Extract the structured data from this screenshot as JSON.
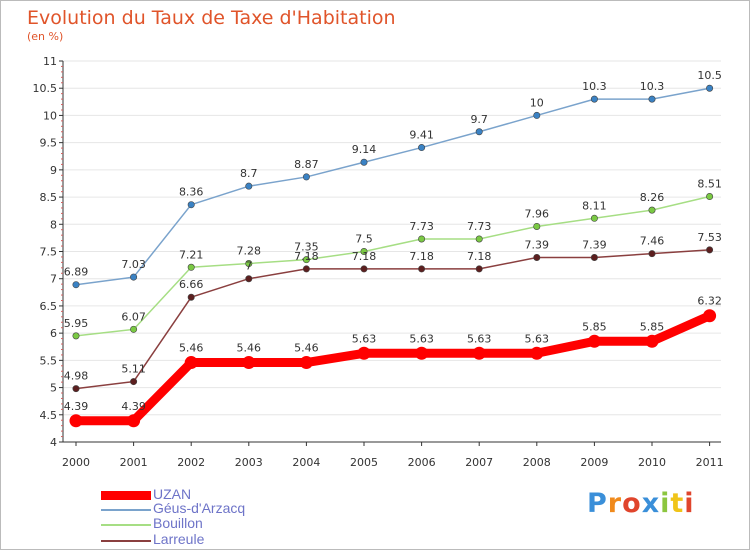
{
  "header": {
    "title": "Evolution du Taux de Taxe d'Habitation",
    "subtitle": "(en %)"
  },
  "logo": {
    "text": "Proxiti",
    "colors": [
      "#3a8fd9",
      "#f08a1c",
      "#e0452c",
      "#3a8fd9",
      "#8cc63f",
      "#f0c419",
      "#e0452c"
    ]
  },
  "chart_data": {
    "type": "line",
    "title": "Evolution du Taux de Taxe d'Habitation",
    "subtitle": "(en %)",
    "xlabel": "",
    "ylabel": "",
    "x": [
      "2000",
      "2001",
      "2002",
      "2003",
      "2004",
      "2005",
      "2006",
      "2007",
      "2008",
      "2009",
      "2010",
      "2011"
    ],
    "ylim": [
      4,
      11
    ],
    "yticks": [
      "4",
      "4.5",
      "5",
      "5.5",
      "6",
      "6.5",
      "7",
      "7.5",
      "8",
      "8.5",
      "9",
      "9.5",
      "10",
      "10.5",
      "11"
    ],
    "legend_position": "bottom-left",
    "series": [
      {
        "name": "UZAN",
        "color": "#ff0000",
        "marker": "#ff0000",
        "values": [
          4.39,
          4.39,
          5.46,
          5.46,
          5.46,
          5.63,
          5.63,
          5.63,
          5.63,
          5.85,
          5.85,
          6.32
        ],
        "labels": [
          "4.39",
          "4.39",
          "5.46",
          "5.46",
          "5.46",
          "5.63",
          "5.63",
          "5.63",
          "5.63",
          "5.85",
          "5.85",
          "6.32"
        ]
      },
      {
        "name": "Géus-d'Arzacq",
        "color": "#7aa3cc",
        "marker": "#3a82c4",
        "values": [
          6.89,
          7.03,
          8.36,
          8.7,
          8.87,
          9.14,
          9.41,
          9.7,
          10,
          10.3,
          10.3,
          10.5
        ],
        "labels": [
          "6.89",
          "7.03",
          "8.36",
          "8.7",
          "8.87",
          "9.14",
          "9.41",
          "9.7",
          "10",
          "10.3",
          "10.3",
          "10.5"
        ]
      },
      {
        "name": "Bouillon",
        "color": "#a6de84",
        "marker": "#7ac943",
        "values": [
          5.95,
          6.07,
          7.21,
          7.28,
          7.35,
          7.5,
          7.73,
          7.73,
          7.96,
          8.11,
          8.26,
          8.51
        ],
        "labels": [
          "5.95",
          "6.07",
          "7.21",
          "7.28",
          "7.35",
          "7.5",
          "7.73",
          "7.73",
          "7.96",
          "8.11",
          "8.26",
          "8.51"
        ]
      },
      {
        "name": "Larreule",
        "color": "#8a3f3f",
        "marker": "#5c1f1f",
        "values": [
          4.98,
          5.11,
          6.66,
          7,
          7.18,
          7.18,
          7.18,
          7.18,
          7.39,
          7.39,
          7.46,
          7.53
        ],
        "labels": [
          "4.98",
          "5.11",
          "6.66",
          "7",
          "7.18",
          "7.18",
          "7.18",
          "7.18",
          "7.39",
          "7.39",
          "7.46",
          "7.53"
        ]
      }
    ]
  }
}
